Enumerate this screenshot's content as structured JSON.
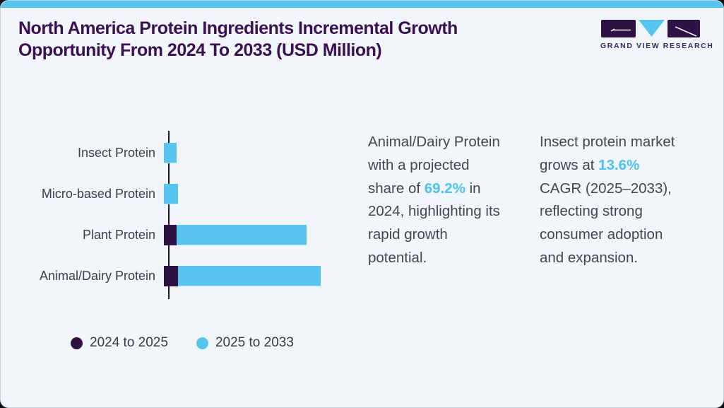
{
  "header": {
    "title": "North America Protein Ingredients Incremental Growth Opportunity From 2024 To 2033 (USD Million)",
    "logo_text": "GRAND VIEW RESEARCH"
  },
  "colors": {
    "accent_blue": "#58c5f0",
    "dark_purple": "#2e1245",
    "title_purple": "#3a1053",
    "card_background": "#f0f6fa",
    "body_text": "#42474f",
    "highlight_blue": "#4ec2ef"
  },
  "chart_data": {
    "type": "bar",
    "orientation": "horizontal",
    "title": "North America Protein Ingredients Incremental Growth Opportunity From 2024 To 2033 (USD Million)",
    "xlabel": "",
    "ylabel": "",
    "grid": false,
    "legend_position": "bottom-left",
    "axis_tick_labels_shown": false,
    "values_note": "No numeric axis is shown in the figure; values are relative units estimated from bar lengths, normalized so the longest stacked bar (Animal/Dairy Protein) = 100.",
    "categories": [
      "Insect Protein",
      "Micro-based Protein",
      "Plant Protein",
      "Animal/Dairy Protein"
    ],
    "series": [
      {
        "name": "2024 to 2025",
        "color": "#2e1245",
        "values": [
          0,
          0,
          8,
          9
        ]
      },
      {
        "name": "2025 to 2033",
        "color": "#58c5f0",
        "values": [
          8,
          9,
          83,
          91
        ]
      }
    ]
  },
  "annotations": [
    {
      "before": "Animal/Dairy Protein with a projected share of ",
      "highlight": "69.2%",
      "after": " in 2024, highlighting its rapid growth potential."
    },
    {
      "before": "Insect protein market grows at ",
      "highlight": "13.6%",
      "after": " CAGR (2025–2033), reflecting strong consumer adoption and expansion."
    }
  ]
}
